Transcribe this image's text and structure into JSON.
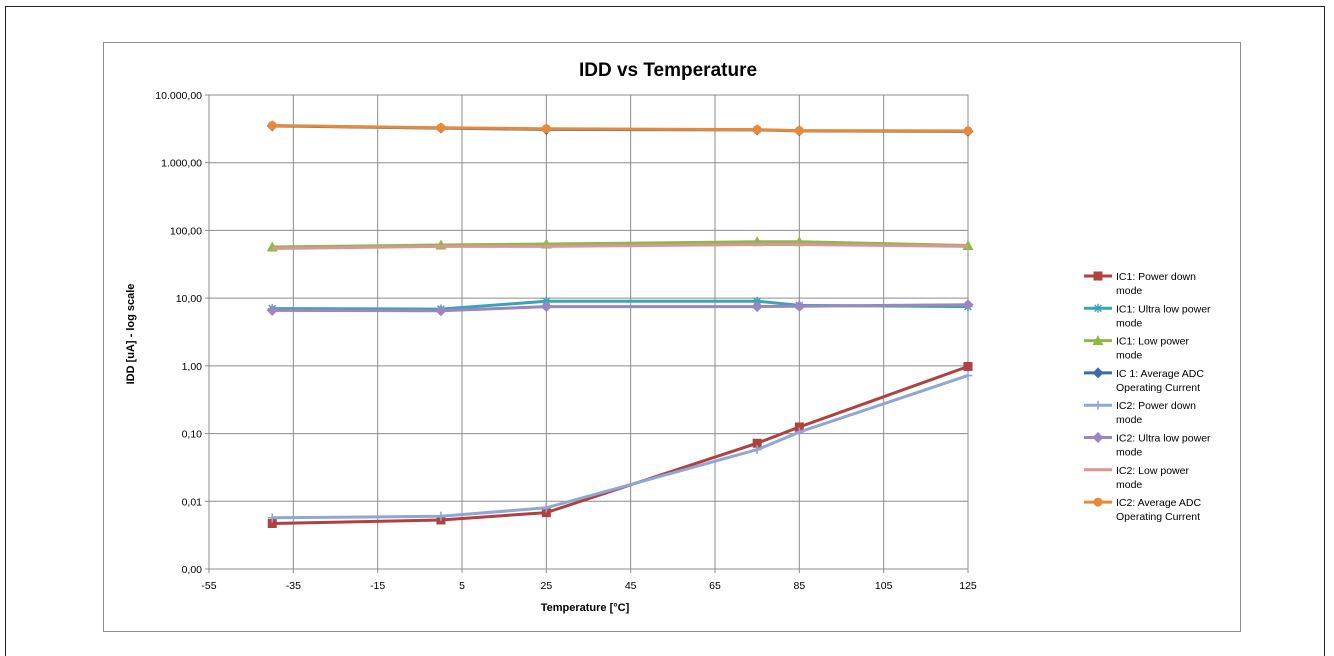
{
  "chart_data": {
    "type": "line",
    "title": "IDD vs Temperature",
    "xlabel": "Temperature [°C]",
    "ylabel": "IDD [uA] - log scale",
    "x_scale": "linear",
    "y_scale": "log",
    "xlim": [
      -55,
      125
    ],
    "ylim": [
      0.001,
      10000
    ],
    "x_ticks": [
      -55,
      -35,
      -15,
      5,
      25,
      45,
      65,
      85,
      105,
      125
    ],
    "x_tick_labels": [
      "-55",
      "-35",
      "-15",
      "5",
      "25",
      "45",
      "65",
      "85",
      "105",
      "125"
    ],
    "y_ticks": [
      0.001,
      0.01,
      0.1,
      1,
      10,
      100,
      1000,
      10000
    ],
    "y_tick_labels": [
      "0,00",
      "0,01",
      "0,10",
      "1,00",
      "10,00",
      "100,00",
      "1.000,00",
      "10.000,00"
    ],
    "grid": true,
    "legend_position": "right",
    "x": [
      -40,
      0,
      25,
      75,
      85,
      125
    ],
    "series": [
      {
        "name": "IC1: Power down mode",
        "legend_lines": [
          "IC1: Power down",
          "mode"
        ],
        "color": "#b0413e",
        "marker": "square",
        "values": [
          0.0047,
          0.0053,
          0.0068,
          0.072,
          0.125,
          0.98
        ]
      },
      {
        "name": "IC1: Ultra low power mode",
        "legend_lines": [
          "IC1: Ultra low power",
          "mode"
        ],
        "color": "#3ba3b6",
        "marker": "star",
        "values": [
          7.0,
          6.9,
          9.0,
          9.0,
          7.8,
          7.5
        ]
      },
      {
        "name": "IC1: Low power mode",
        "legend_lines": [
          "IC1: Low power",
          "mode"
        ],
        "color": "#8eb84a",
        "marker": "triangle",
        "values": [
          57,
          61,
          63,
          68,
          68,
          60
        ]
      },
      {
        "name": "IC 1: Average ADC Operating Current",
        "legend_lines": [
          "IC 1: Average ADC",
          "Operating Current"
        ],
        "color": "#3d6da8",
        "marker": "diamond",
        "values": [
          3500,
          3250,
          3100,
          3050,
          2950,
          2900
        ]
      },
      {
        "name": "IC2: Power down mode",
        "legend_lines": [
          "IC2: Power down",
          "mode"
        ],
        "color": "#8fa7d5",
        "marker": "plus",
        "values": [
          0.0057,
          0.006,
          0.008,
          0.058,
          0.105,
          0.72
        ]
      },
      {
        "name": "IC2: Ultra low power mode",
        "legend_lines": [
          "IC2: Ultra low power",
          "mode"
        ],
        "color": "#9b86bf",
        "marker": "diamond",
        "values": [
          6.6,
          6.5,
          7.5,
          7.5,
          7.6,
          8.0
        ]
      },
      {
        "name": "IC2: Low power mode",
        "legend_lines": [
          "IC2: Low power",
          "mode"
        ],
        "color": "#d99694",
        "marker": "none",
        "values": [
          54,
          58,
          58,
          62,
          62,
          58
        ]
      },
      {
        "name": "IC2: Average ADC Operating Current",
        "legend_lines": [
          "IC2: Average ADC",
          "Operating Current"
        ],
        "color": "#e8893a",
        "marker": "circle",
        "values": [
          3550,
          3280,
          3180,
          3080,
          2980,
          2950
        ]
      }
    ]
  }
}
